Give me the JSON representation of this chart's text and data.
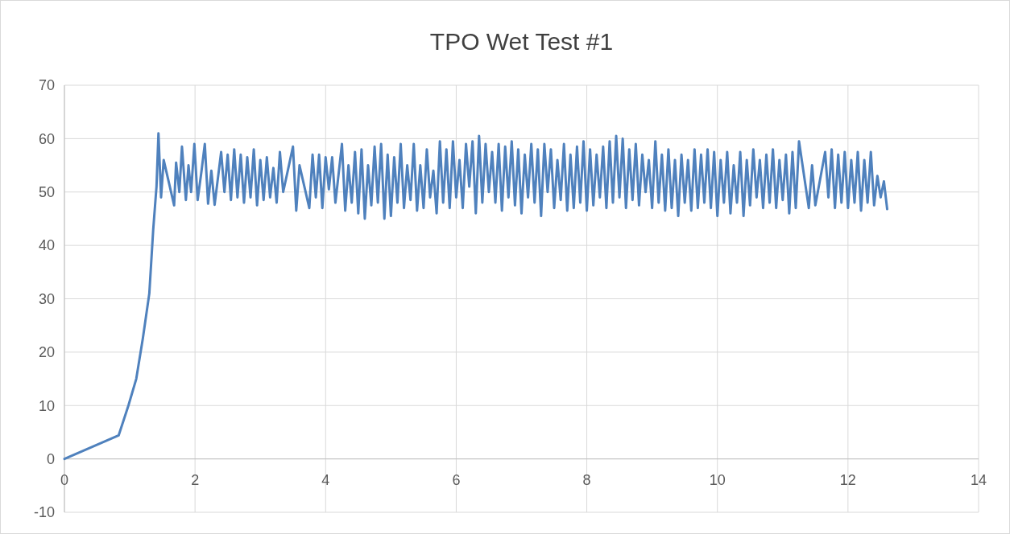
{
  "chart_data": {
    "type": "line",
    "title": "TPO Wet Test #1",
    "xlim": [
      0,
      14
    ],
    "xticks": [
      0,
      2,
      4,
      6,
      8,
      10,
      12,
      14
    ],
    "ylim": [
      -10,
      70
    ],
    "yticks": [
      -10,
      0,
      10,
      20,
      30,
      40,
      50,
      60,
      70
    ],
    "grid": true,
    "marker": "none",
    "line_style": "solid",
    "series": [
      {
        "color": "#4f81bd",
        "x": [
          0,
          0.83,
          0.98,
          1.1,
          1.2,
          1.3,
          1.36,
          1.41,
          1.44,
          1.48,
          1.52,
          1.68,
          1.71,
          1.76,
          1.8,
          1.86,
          1.9,
          1.94,
          1.99,
          2.04,
          2.1,
          2.15,
          2.2,
          2.25,
          2.3,
          2.4,
          2.45,
          2.5,
          2.55,
          2.6,
          2.65,
          2.7,
          2.75,
          2.8,
          2.85,
          2.9,
          2.95,
          3.0,
          3.05,
          3.1,
          3.15,
          3.2,
          3.25,
          3.3,
          3.35,
          3.5,
          3.55,
          3.6,
          3.75,
          3.8,
          3.85,
          3.9,
          3.95,
          4.0,
          4.05,
          4.1,
          4.15,
          4.25,
          4.3,
          4.35,
          4.4,
          4.45,
          4.5,
          4.55,
          4.6,
          4.65,
          4.7,
          4.75,
          4.8,
          4.85,
          4.9,
          4.95,
          5.0,
          5.05,
          5.1,
          5.15,
          5.2,
          5.25,
          5.3,
          5.35,
          5.4,
          5.45,
          5.5,
          5.55,
          5.6,
          5.65,
          5.7,
          5.75,
          5.8,
          5.85,
          5.9,
          5.95,
          6.0,
          6.05,
          6.1,
          6.15,
          6.2,
          6.25,
          6.3,
          6.35,
          6.4,
          6.45,
          6.5,
          6.55,
          6.6,
          6.65,
          6.7,
          6.75,
          6.8,
          6.85,
          6.9,
          6.95,
          7.0,
          7.05,
          7.1,
          7.15,
          7.2,
          7.25,
          7.3,
          7.35,
          7.4,
          7.45,
          7.5,
          7.55,
          7.6,
          7.65,
          7.7,
          7.75,
          7.8,
          7.85,
          7.9,
          7.95,
          8.0,
          8.05,
          8.1,
          8.15,
          8.2,
          8.25,
          8.3,
          8.35,
          8.4,
          8.45,
          8.5,
          8.55,
          8.6,
          8.65,
          8.7,
          8.75,
          8.8,
          8.85,
          8.9,
          8.95,
          9.0,
          9.05,
          9.1,
          9.15,
          9.2,
          9.25,
          9.3,
          9.35,
          9.4,
          9.45,
          9.5,
          9.55,
          9.6,
          9.65,
          9.7,
          9.75,
          9.8,
          9.85,
          9.9,
          9.95,
          10.0,
          10.05,
          10.1,
          10.15,
          10.2,
          10.25,
          10.3,
          10.35,
          10.4,
          10.45,
          10.5,
          10.55,
          10.6,
          10.65,
          10.7,
          10.75,
          10.8,
          10.85,
          10.9,
          10.95,
          11.0,
          11.05,
          11.1,
          11.15,
          11.2,
          11.25,
          11.4,
          11.45,
          11.5,
          11.65,
          11.7,
          11.75,
          11.8,
          11.85,
          11.9,
          11.95,
          12.0,
          12.05,
          12.1,
          12.15,
          12.2,
          12.25,
          12.3,
          12.35,
          12.4,
          12.45,
          12.5,
          12.55,
          12.6
        ],
        "values": [
          0,
          4.4,
          10,
          15,
          22.5,
          31,
          43,
          51,
          61,
          49,
          56,
          47.5,
          55.5,
          50,
          58.5,
          48.5,
          55,
          50,
          59,
          48.5,
          54,
          59,
          47.8,
          54,
          47.6,
          57.5,
          50,
          57,
          48.5,
          58,
          49,
          57,
          48,
          56.5,
          49,
          58,
          47.5,
          56,
          48.5,
          56.5,
          49,
          54.5,
          48,
          57.5,
          50,
          58.5,
          46.5,
          55,
          47,
          57,
          49,
          57,
          47,
          56.5,
          50.5,
          56.5,
          48,
          59,
          46.5,
          55,
          48,
          57.5,
          46,
          58,
          45,
          55,
          47.5,
          58.5,
          48,
          59,
          45,
          57,
          45.5,
          56.5,
          48,
          59,
          47,
          55,
          48.5,
          59,
          46.5,
          55,
          47,
          58,
          49,
          54,
          46,
          59.5,
          48,
          58,
          47,
          59.5,
          49,
          56,
          47,
          59,
          51,
          59.5,
          46,
          60.5,
          48,
          59,
          50,
          57.5,
          48,
          59,
          46.5,
          58.5,
          49,
          59.5,
          47.5,
          58,
          46,
          57,
          49,
          59,
          48,
          58,
          45.5,
          59,
          50,
          58,
          47,
          56,
          48.5,
          59,
          46.5,
          57,
          47,
          58.5,
          48,
          59.5,
          46.5,
          58,
          47.5,
          57,
          49,
          58.5,
          47,
          59.5,
          48,
          60.5,
          49,
          60,
          47,
          58,
          48.5,
          59,
          47.5,
          57,
          50,
          56,
          47,
          59.5,
          48,
          57,
          46.5,
          58,
          47,
          56,
          45.5,
          57,
          48,
          56,
          46.5,
          58,
          47,
          57,
          48,
          58,
          47,
          57.5,
          45.5,
          56,
          48,
          57.5,
          46,
          55,
          48,
          57.5,
          45.5,
          56,
          47.5,
          58,
          49,
          56,
          47,
          57,
          48,
          58,
          47,
          56,
          48.5,
          57,
          46,
          57.5,
          47,
          59.5,
          47,
          55,
          47.5,
          57.5,
          49,
          58,
          47,
          57,
          48,
          57.5,
          47,
          56,
          48,
          57.5,
          46.5,
          56,
          48,
          57.5,
          47.5,
          53,
          49,
          52,
          46.8
        ]
      }
    ]
  }
}
